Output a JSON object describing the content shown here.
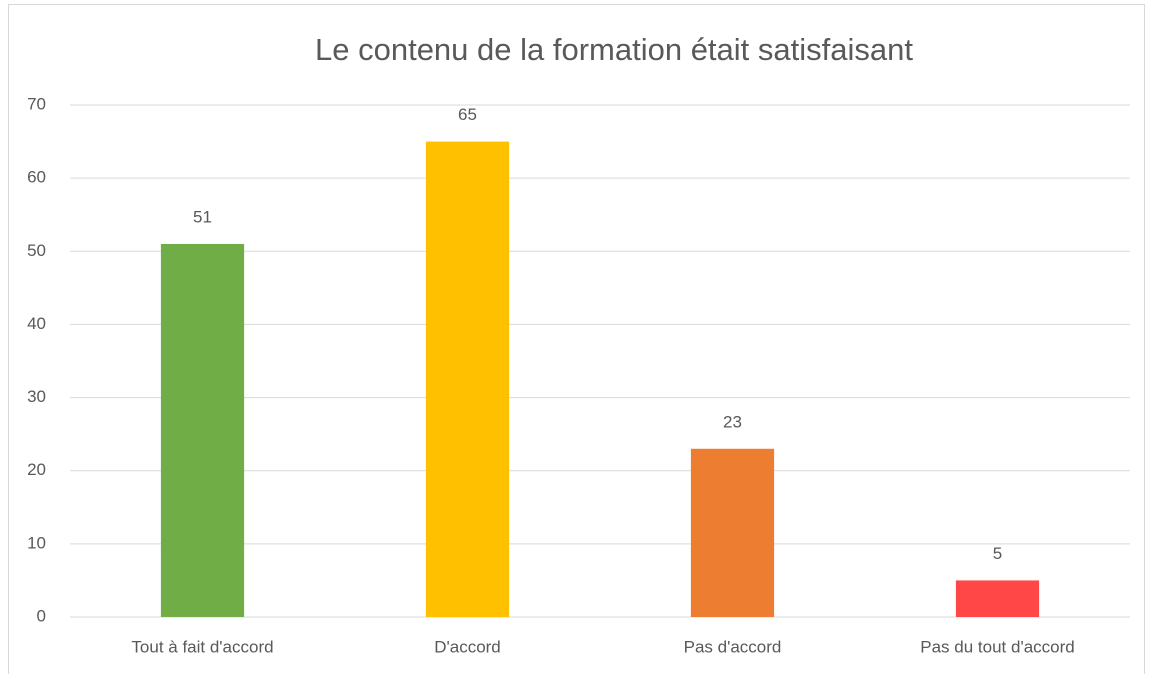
{
  "chart_data": {
    "type": "bar",
    "title": "Le contenu de la formation était satisfaisant",
    "categories": [
      "Tout à fait d'accord",
      "D'accord",
      "Pas d'accord",
      "Pas du tout d'accord"
    ],
    "values": [
      51,
      65,
      23,
      5
    ],
    "colors": [
      "#70ad47",
      "#ffc000",
      "#ed7d31",
      "#ff4747"
    ],
    "ylim": [
      0,
      70
    ],
    "yticks": [
      0,
      10,
      20,
      30,
      40,
      50,
      60,
      70
    ],
    "grid": true
  }
}
